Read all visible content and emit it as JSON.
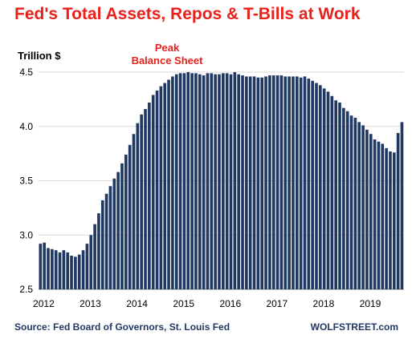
{
  "chart_data": {
    "type": "bar",
    "title": "Fed's Total Assets, Repos & T-Bills at Work",
    "ylabel": "Trillion $",
    "xlabel": "",
    "ylim": [
      2.5,
      4.5
    ],
    "yticks": [
      "2.5",
      "3.0",
      "3.5",
      "4.0",
      "4.5"
    ],
    "xticks": [
      "2012",
      "2013",
      "2014",
      "2015",
      "2016",
      "2017",
      "2018",
      "2019"
    ],
    "annotations": [
      {
        "text_line1": "Peak",
        "text_line2": "Balance Sheet"
      }
    ],
    "source": "Source: Fed Board of Governors, St. Louis Fed",
    "credit": "WOLFSTREET.com",
    "bar_color": "#1f3864",
    "grid": "horizontal",
    "x_start": "2012-01",
    "interval": "monthly",
    "values": [
      2.92,
      2.93,
      2.88,
      2.87,
      2.86,
      2.84,
      2.86,
      2.84,
      2.81,
      2.8,
      2.82,
      2.86,
      2.92,
      3.0,
      3.1,
      3.2,
      3.32,
      3.38,
      3.45,
      3.52,
      3.58,
      3.66,
      3.74,
      3.83,
      3.93,
      4.03,
      4.11,
      4.16,
      4.22,
      4.29,
      4.33,
      4.37,
      4.4,
      4.43,
      4.46,
      4.48,
      4.49,
      4.49,
      4.5,
      4.49,
      4.49,
      4.48,
      4.47,
      4.49,
      4.49,
      4.48,
      4.48,
      4.49,
      4.49,
      4.48,
      4.5,
      4.48,
      4.47,
      4.46,
      4.46,
      4.46,
      4.45,
      4.45,
      4.46,
      4.47,
      4.47,
      4.47,
      4.47,
      4.46,
      4.46,
      4.46,
      4.46,
      4.45,
      4.46,
      4.44,
      4.42,
      4.4,
      4.38,
      4.35,
      4.32,
      4.28,
      4.24,
      4.22,
      4.17,
      4.14,
      4.1,
      4.08,
      4.04,
      4.01,
      3.97,
      3.93,
      3.88,
      3.86,
      3.84,
      3.8,
      3.77,
      3.76,
      3.94,
      4.04
    ]
  }
}
